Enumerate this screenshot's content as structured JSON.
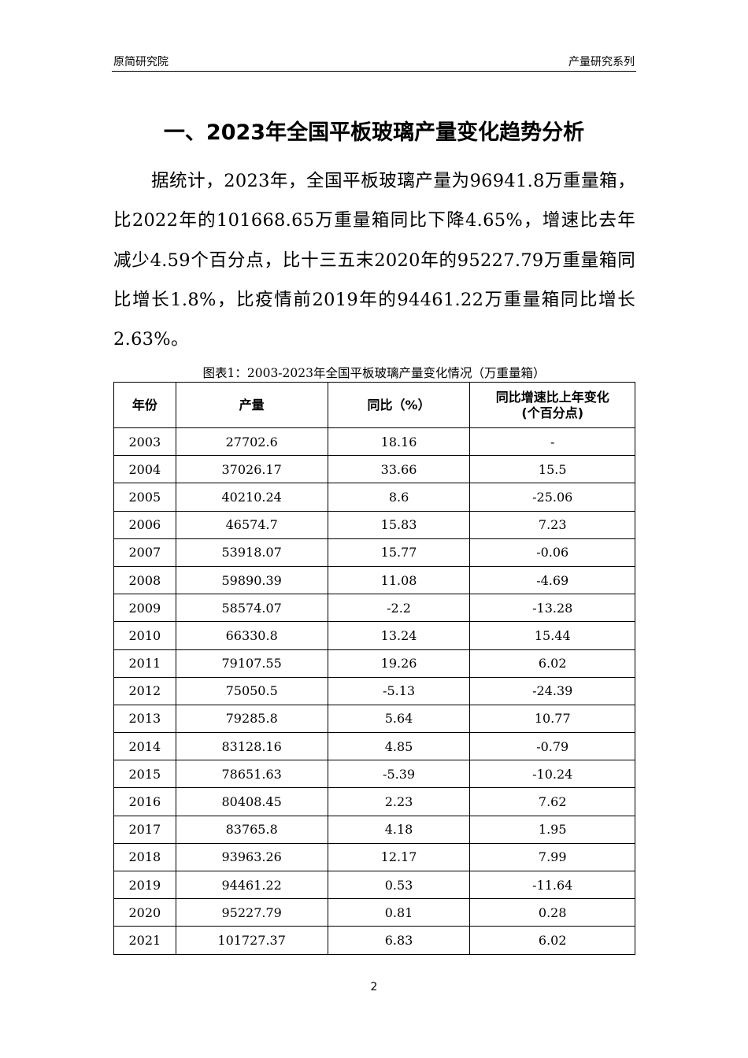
{
  "header": {
    "left": "原简研究院",
    "right": "产量研究系列"
  },
  "title": "一、2023年全国平板玻璃产量变化趋势分析",
  "paragraph": "据统计，2023年，全国平板玻璃产量为96941.8万重量箱，比2022年的101668.65万重量箱同比下降4.65%，增速比去年减少4.59个百分点，比十三五末2020年的95227.79万重量箱同比增长1.8%，比疫情前2019年的94461.22万重量箱同比增长2.63%。",
  "table": {
    "caption": "图表1：2003-2023年全国平板玻璃产量变化情况（万重量箱）",
    "headers": [
      "年份",
      "产量",
      "同比（%）",
      "同比增速比上年变化\n(个百分点)"
    ],
    "rows": [
      [
        "2003",
        "27702.6",
        "18.16",
        "-"
      ],
      [
        "2004",
        "37026.17",
        "33.66",
        "15.5"
      ],
      [
        "2005",
        "40210.24",
        "8.6",
        "-25.06"
      ],
      [
        "2006",
        "46574.7",
        "15.83",
        "7.23"
      ],
      [
        "2007",
        "53918.07",
        "15.77",
        "-0.06"
      ],
      [
        "2008",
        "59890.39",
        "11.08",
        "-4.69"
      ],
      [
        "2009",
        "58574.07",
        "-2.2",
        "-13.28"
      ],
      [
        "2010",
        "66330.8",
        "13.24",
        "15.44"
      ],
      [
        "2011",
        "79107.55",
        "19.26",
        "6.02"
      ],
      [
        "2012",
        "75050.5",
        "-5.13",
        "-24.39"
      ],
      [
        "2013",
        "79285.8",
        "5.64",
        "10.77"
      ],
      [
        "2014",
        "83128.16",
        "4.85",
        "-0.79"
      ],
      [
        "2015",
        "78651.63",
        "-5.39",
        "-10.24"
      ],
      [
        "2016",
        "80408.45",
        "2.23",
        "7.62"
      ],
      [
        "2017",
        "83765.8",
        "4.18",
        "1.95"
      ],
      [
        "2018",
        "93963.26",
        "12.17",
        "7.99"
      ],
      [
        "2019",
        "94461.22",
        "0.53",
        "-11.64"
      ],
      [
        "2020",
        "95227.79",
        "0.81",
        "0.28"
      ],
      [
        "2021",
        "101727.37",
        "6.83",
        "6.02"
      ]
    ]
  },
  "page_number": "2"
}
